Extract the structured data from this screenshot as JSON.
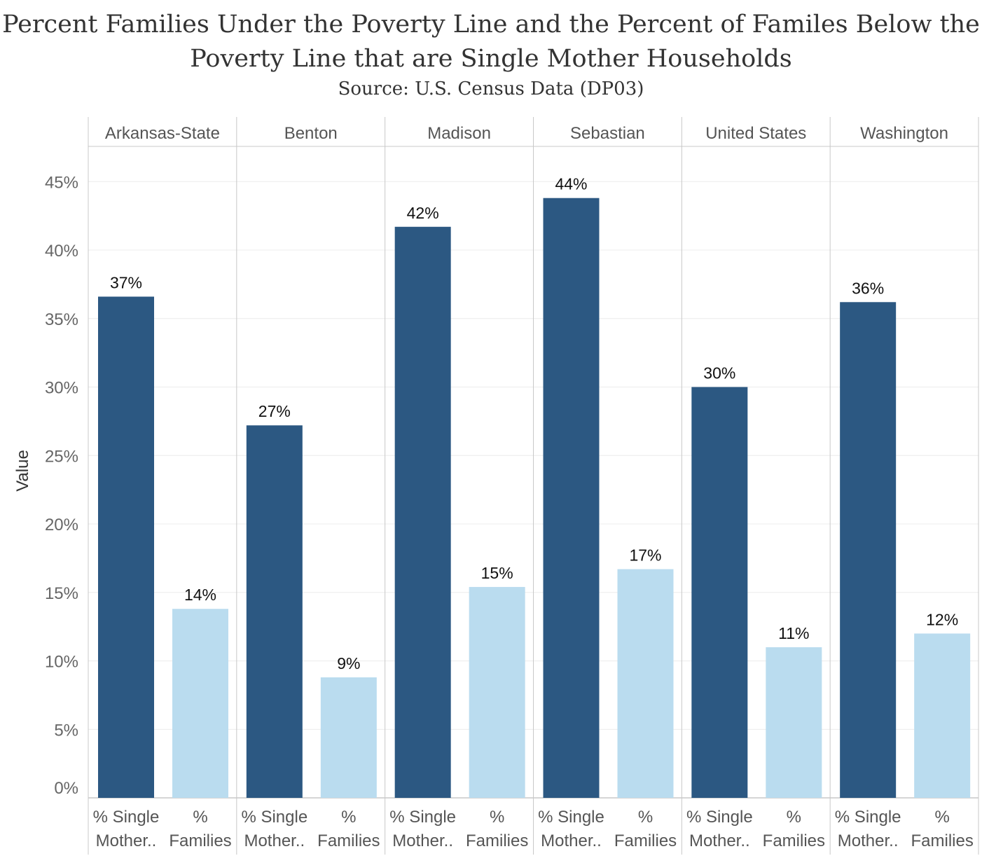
{
  "title_line1": "Percent Families Under the Poverty Line and the Percent of Familes Below the",
  "title_line2": "Poverty Line that are Single Mother Households",
  "subtitle": "Source: U.S. Census Data (DP03)",
  "chart_data": {
    "type": "bar",
    "title": "Percent Families Under the Poverty Line and the Percent of Familes Below the Poverty Line that are Single Mother Households",
    "subtitle": "Source: U.S. Census Data (DP03)",
    "ylabel": "Value",
    "ylim": [
      0,
      46
    ],
    "yticks": [
      "0%",
      "5%",
      "10%",
      "15%",
      "20%",
      "25%",
      "30%",
      "35%",
      "40%",
      "45%"
    ],
    "grid": true,
    "panels": [
      "Arkansas-State",
      "Benton",
      "Madison",
      "Sebastian",
      "United States",
      "Washington"
    ],
    "measures": [
      {
        "label_line1": "% Single",
        "label_line2": "Mother..",
        "color": "#2c5882"
      },
      {
        "label_line1": "%",
        "label_line2": "Families",
        "color": "#badcef"
      }
    ],
    "series": [
      {
        "name": "% Single Mother..",
        "values": [
          36.6,
          27.2,
          41.7,
          43.8,
          30.0,
          36.2
        ],
        "labels": [
          "37%",
          "27%",
          "42%",
          "44%",
          "30%",
          "36%"
        ]
      },
      {
        "name": "% Families",
        "values": [
          13.8,
          8.8,
          15.4,
          16.7,
          11.0,
          12.0
        ],
        "labels": [
          "14%",
          "9%",
          "15%",
          "17%",
          "11%",
          "12%"
        ]
      }
    ]
  }
}
